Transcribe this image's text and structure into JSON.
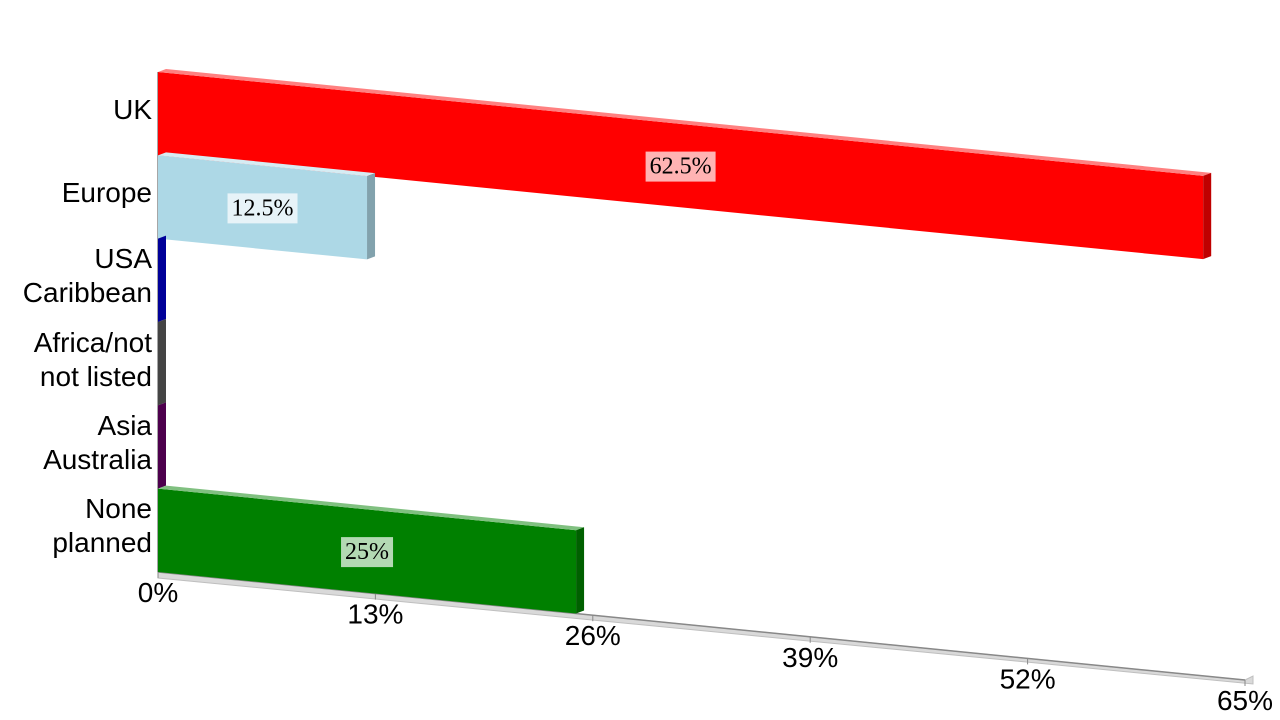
{
  "chart_data": {
    "type": "bar",
    "categories": [
      "UK",
      "Europe",
      "USA\nCaribbean",
      "Africa/not\nnot listed",
      "Asia\nAustralia",
      "None\nplanned"
    ],
    "values": [
      62.5,
      12.5,
      0,
      0,
      0,
      25
    ],
    "value_labels": [
      "62.5%",
      "12.5%",
      null,
      null,
      null,
      "25%"
    ],
    "colors": [
      "#ff0000",
      "#add8e6",
      "#0000cc",
      "#5a5a5a",
      "#660066",
      "#008000"
    ],
    "xlim": [
      0,
      65
    ],
    "xticks": [
      {
        "value": 0,
        "label": "0%"
      },
      {
        "value": 13,
        "label": "13%"
      },
      {
        "value": 26,
        "label": "26%"
      },
      {
        "value": 39,
        "label": "39%"
      },
      {
        "value": 52,
        "label": "52%"
      },
      {
        "value": 65,
        "label": "65%"
      }
    ]
  }
}
